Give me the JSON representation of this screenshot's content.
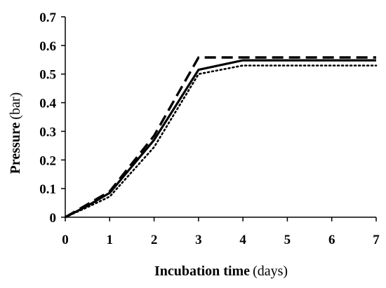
{
  "chart_data": {
    "type": "line",
    "title": "",
    "xlabel": "Incubation time",
    "xlabel_unit": "(days)",
    "ylabel": "Pressure",
    "ylabel_unit": "(bar)",
    "xlim": [
      0,
      7
    ],
    "ylim": [
      0,
      0.7
    ],
    "x_ticks": [
      "0",
      "1",
      "2",
      "3",
      "4",
      "5",
      "6",
      "7"
    ],
    "y_ticks": [
      "0",
      "0.1",
      "0.2",
      "0.3",
      "0.4",
      "0.5",
      "0.6",
      "0.7"
    ],
    "grid": false,
    "legend": "none",
    "series": [
      {
        "style": "solid",
        "color": "#000000",
        "x": [
          0,
          0.5,
          1,
          2,
          3,
          4,
          5,
          6,
          7
        ],
        "y": [
          0,
          0.04,
          0.085,
          0.27,
          0.515,
          0.548,
          0.548,
          0.548,
          0.548
        ]
      },
      {
        "style": "dashed",
        "color": "#000000",
        "x": [
          0,
          0.5,
          1,
          2,
          3,
          4,
          5,
          6,
          7
        ],
        "y": [
          0,
          0.045,
          0.09,
          0.285,
          0.558,
          0.558,
          0.558,
          0.558,
          0.558
        ]
      },
      {
        "style": "dotted",
        "color": "#000000",
        "x": [
          0,
          0.5,
          1,
          2,
          3,
          4,
          5,
          6,
          7
        ],
        "y": [
          0,
          0.035,
          0.072,
          0.245,
          0.5,
          0.53,
          0.53,
          0.53,
          0.53
        ]
      }
    ]
  }
}
